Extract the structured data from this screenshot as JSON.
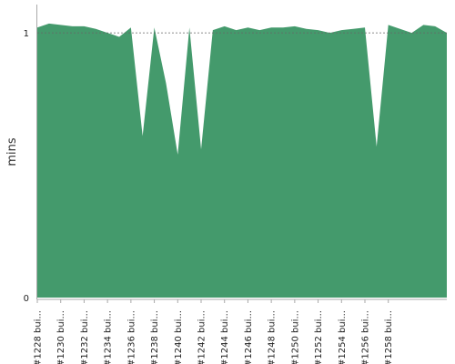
{
  "chart_data": {
    "type": "area",
    "ylabel": "mins",
    "ylim": [
      0,
      1.1
    ],
    "y_ticks": [
      0,
      1
    ],
    "reference_line": 1,
    "colors": {
      "fill": "#449a6c",
      "axis": "#aaaaaa",
      "reference": "#666666"
    },
    "x_tick_labels": [
      "#1228 bui...",
      "#1230 bui...",
      "#1232 bui...",
      "#1234 bui...",
      "#1236 bui...",
      "#1238 bui...",
      "#1240 bui...",
      "#1242 bui...",
      "#1244 bui...",
      "#1246 bui...",
      "#1248 bui...",
      "#1250 bui...",
      "#1252 bui...",
      "#1254 bui...",
      "#1256 bui...",
      "#1258 bui..."
    ],
    "values": [
      1.02,
      1.035,
      1.03,
      1.025,
      1.025,
      1.015,
      1.0,
      0.985,
      1.02,
      0.61,
      1.02,
      0.81,
      0.54,
      1.02,
      0.56,
      1.01,
      1.025,
      1.01,
      1.02,
      1.01,
      1.02,
      1.02,
      1.025,
      1.015,
      1.01,
      1.0,
      1.01,
      1.015,
      1.02,
      0.57,
      1.03,
      1.015,
      1.0,
      1.03,
      1.025,
      1.0
    ]
  }
}
